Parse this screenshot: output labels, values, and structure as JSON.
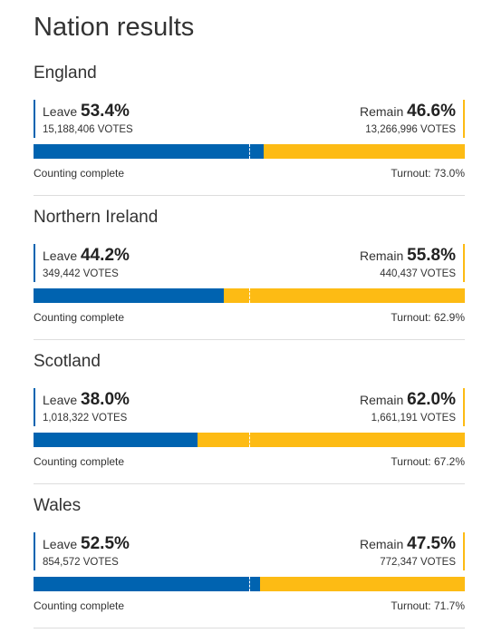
{
  "title": "Nation results",
  "colors": {
    "leave": "#0063b0",
    "remain": "#fdbb14"
  },
  "nations": [
    {
      "name": "England",
      "leave": {
        "label": "Leave",
        "percent": {
          "value": 53.4,
          "label": "53.4%"
        },
        "votes": "15,188,406 VOTES"
      },
      "remain": {
        "label": "Remain",
        "percent": {
          "value": 46.6,
          "label": "46.6%"
        },
        "votes": "13,266,996 VOTES"
      },
      "status": "Counting complete",
      "turnout": "Turnout: 73.0%"
    },
    {
      "name": "Northern Ireland",
      "leave": {
        "label": "Leave",
        "percent": {
          "value": 44.2,
          "label": "44.2%"
        },
        "votes": "349,442 VOTES"
      },
      "remain": {
        "label": "Remain",
        "percent": {
          "value": 55.8,
          "label": "55.8%"
        },
        "votes": "440,437 VOTES"
      },
      "status": "Counting complete",
      "turnout": "Turnout: 62.9%"
    },
    {
      "name": "Scotland",
      "leave": {
        "label": "Leave",
        "percent": {
          "value": 38.0,
          "label": "38.0%"
        },
        "votes": "1,018,322 VOTES"
      },
      "remain": {
        "label": "Remain",
        "percent": {
          "value": 62.0,
          "label": "62.0%"
        },
        "votes": "1,661,191 VOTES"
      },
      "status": "Counting complete",
      "turnout": "Turnout: 67.2%"
    },
    {
      "name": "Wales",
      "leave": {
        "label": "Leave",
        "percent": {
          "value": 52.5,
          "label": "52.5%"
        },
        "votes": "854,572 VOTES"
      },
      "remain": {
        "label": "Remain",
        "percent": {
          "value": 47.5,
          "label": "47.5%"
        },
        "votes": "772,347 VOTES"
      },
      "status": "Counting complete",
      "turnout": "Turnout: 71.7%"
    }
  ]
}
